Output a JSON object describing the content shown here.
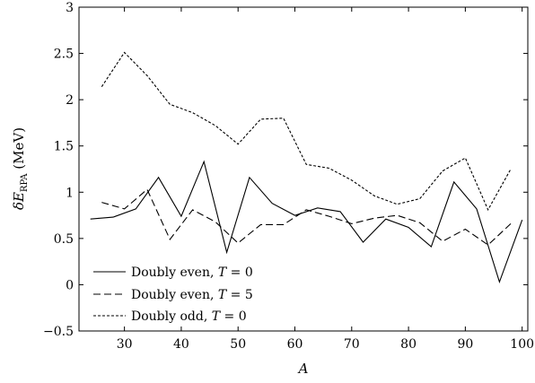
{
  "chart_data": {
    "type": "line",
    "xlabel": "A",
    "ylabel_main": "δE",
    "ylabel_sub": "RPA",
    "ylabel_unit": " (MeV)",
    "xlim": [
      22,
      101
    ],
    "ylim": [
      -0.5,
      3
    ],
    "xticks": [
      30,
      40,
      50,
      60,
      70,
      80,
      90,
      100
    ],
    "yticks": [
      -0.5,
      0,
      0.5,
      1,
      1.5,
      2,
      2.5,
      3
    ],
    "ytick_labels": [
      "−0.5",
      "0",
      "0.5",
      "1",
      "1.5",
      "2",
      "2.5",
      "3"
    ],
    "grid": false,
    "legend_position": "lower-left",
    "series": [
      {
        "name": "Doubly even, T = 0",
        "name_prefix": "Doubly even, ",
        "name_var": "T",
        "name_suffix": " = 0",
        "style": "solid",
        "x": [
          24,
          28,
          32,
          36,
          40,
          44,
          48,
          52,
          56,
          60,
          64,
          68,
          72,
          76,
          80,
          84,
          88,
          92,
          96,
          100
        ],
        "y": [
          0.71,
          0.73,
          0.82,
          1.16,
          0.74,
          1.33,
          0.35,
          1.16,
          0.88,
          0.75,
          0.83,
          0.79,
          0.46,
          0.71,
          0.62,
          0.41,
          1.11,
          0.82,
          0.03,
          0.7
        ]
      },
      {
        "name": "Doubly even, T = 5",
        "name_prefix": "Doubly even, ",
        "name_var": "T",
        "name_suffix": " = 5",
        "style": "dashed",
        "x": [
          26,
          30,
          34,
          38,
          42,
          46,
          50,
          54,
          58,
          62,
          66,
          70,
          74,
          78,
          82,
          86,
          90,
          94,
          98
        ],
        "y": [
          0.89,
          0.82,
          1.03,
          0.49,
          0.81,
          0.68,
          0.45,
          0.65,
          0.65,
          0.81,
          0.74,
          0.66,
          0.72,
          0.75,
          0.67,
          0.47,
          0.6,
          0.43,
          0.66
        ]
      },
      {
        "name": "Doubly odd, T = 0",
        "name_prefix": "Doubly odd, ",
        "name_var": "T",
        "name_suffix": " = 0",
        "style": "dotted",
        "x": [
          26,
          30,
          34,
          38,
          42,
          46,
          50,
          54,
          58,
          62,
          66,
          70,
          74,
          78,
          82,
          86,
          90,
          94,
          98
        ],
        "y": [
          2.14,
          2.51,
          2.26,
          1.95,
          1.86,
          1.72,
          1.52,
          1.79,
          1.8,
          1.3,
          1.26,
          1.13,
          0.96,
          0.87,
          0.93,
          1.23,
          1.37,
          0.81,
          1.25
        ]
      }
    ]
  }
}
